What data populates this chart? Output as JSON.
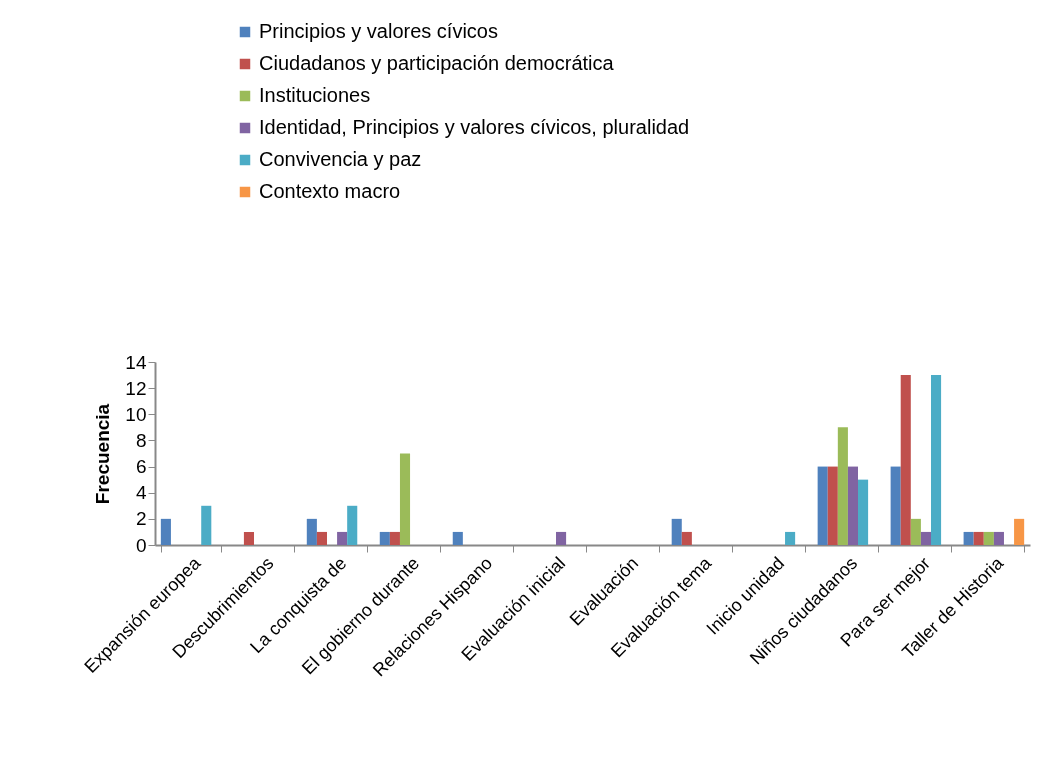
{
  "chart_data": {
    "type": "bar",
    "ylabel": "Frecuencia",
    "categories": [
      "Expansión europea",
      "Descubrimientos",
      "La conquista de",
      "El gobierno durante",
      "Relaciones Hispano",
      "Evaluación inicial",
      "Evaluación",
      "Evaluación tema",
      "Inicio unidad",
      "Niños ciudadanos",
      "Para ser mejor",
      "Taller de Historia"
    ],
    "series": [
      {
        "name": "Principios y valores cívicos",
        "color": "#4f81bd",
        "values": [
          2,
          null,
          2,
          1,
          1,
          null,
          null,
          2,
          null,
          6,
          6,
          1
        ]
      },
      {
        "name": "Ciudadanos y participación democrática",
        "color": "#c0504d",
        "values": [
          null,
          1,
          1,
          1,
          null,
          null,
          null,
          1,
          null,
          6,
          13,
          1
        ]
      },
      {
        "name": "Instituciones",
        "color": "#9bbb59",
        "values": [
          null,
          null,
          null,
          7,
          null,
          null,
          null,
          null,
          null,
          9,
          2,
          1
        ]
      },
      {
        "name": "Identidad, Principios y valores cívicos, pluralidad",
        "color": "#8064a2",
        "values": [
          null,
          null,
          1,
          null,
          null,
          1,
          null,
          null,
          null,
          6,
          1,
          1
        ]
      },
      {
        "name": "Convivencia y paz",
        "color": "#4bacc6",
        "values": [
          3,
          null,
          3,
          null,
          null,
          null,
          null,
          null,
          1,
          5,
          13,
          null
        ]
      },
      {
        "name": "Contexto macro",
        "color": "#f79646",
        "values": [
          null,
          null,
          null,
          null,
          null,
          null,
          null,
          null,
          null,
          null,
          null,
          2
        ]
      }
    ],
    "ylim": [
      0,
      14
    ],
    "yticks": [
      0,
      2,
      4,
      6,
      8,
      10,
      12,
      14
    ],
    "grid": false,
    "legend": "top"
  }
}
